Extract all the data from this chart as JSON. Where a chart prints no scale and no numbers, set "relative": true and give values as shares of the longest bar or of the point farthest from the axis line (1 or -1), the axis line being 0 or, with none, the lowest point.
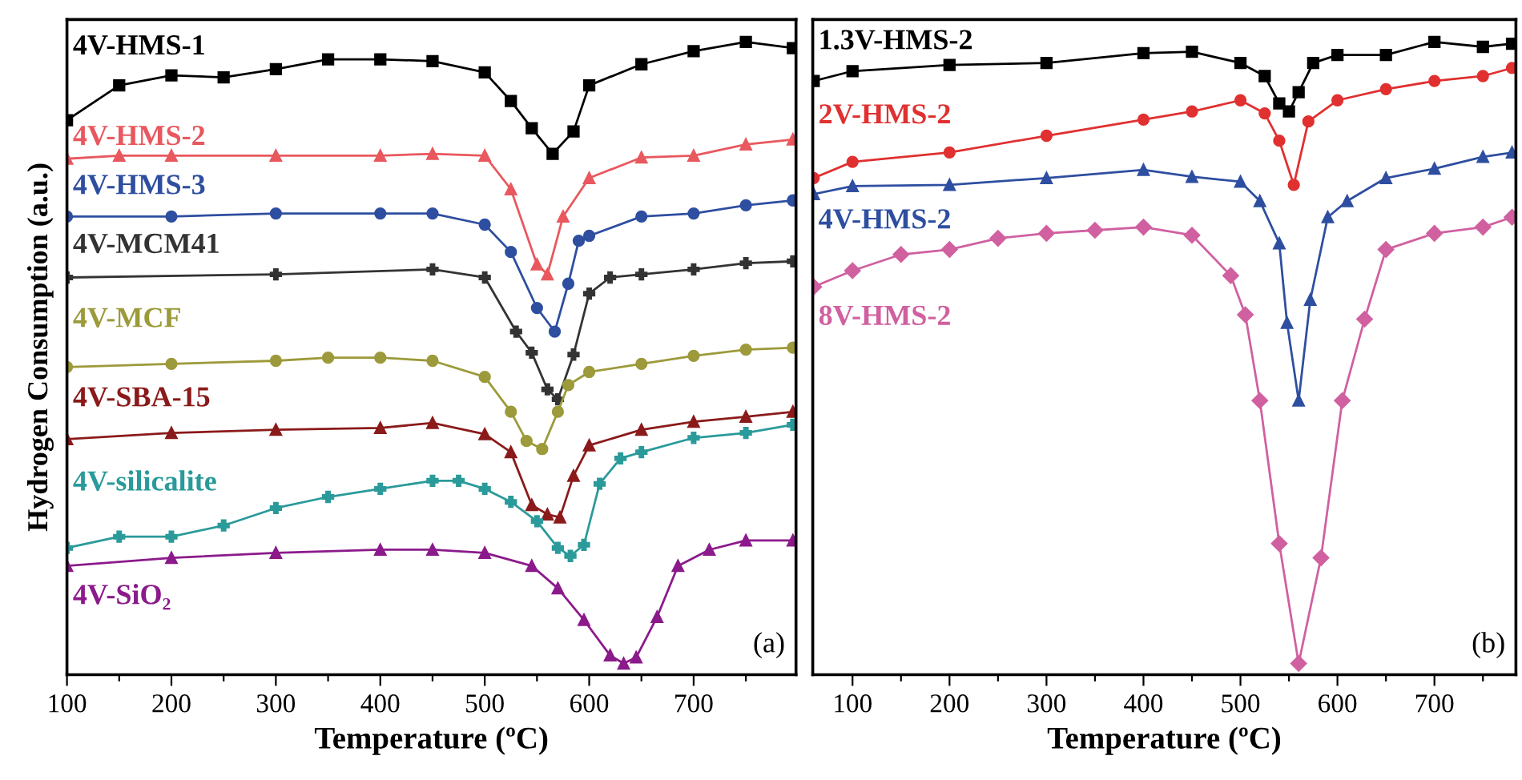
{
  "chart_data": [
    {
      "type": "line",
      "relative": true,
      "ylabel": "Hydrogen Consumption (a.u.)",
      "xlabel": "Temperature (ºC)",
      "xlim": [
        100,
        798
      ],
      "xticks": [
        100,
        {
          "value": 150,
          "label": null
        },
        200,
        {
          "value": 250,
          "label": null
        },
        300,
        {
          "value": 350,
          "label": null
        },
        400,
        {
          "value": 450,
          "label": null
        },
        500,
        {
          "value": 550,
          "label": null
        },
        600,
        {
          "value": 650,
          "label": null
        },
        700,
        {
          "value": 750,
          "label": null
        }
      ],
      "tick_labels": "x",
      "grid": false,
      "legend": false,
      "annotations": [
        "(a)"
      ],
      "series": [
        {
          "name": "4V-HMS-1",
          "color": "#000000",
          "marker": "square",
          "x": [
            100,
            150,
            200,
            250,
            300,
            350,
            400,
            450,
            500,
            525,
            545,
            565,
            585,
            600,
            650,
            700,
            750,
            795
          ],
          "values": [
            0.874,
            0.93,
            0.946,
            0.943,
            0.956,
            0.972,
            0.972,
            0.969,
            0.951,
            0.905,
            0.861,
            0.82,
            0.856,
            0.93,
            0.964,
            0.985,
            1.0,
            0.99
          ]
        },
        {
          "name": "4V-HMS-2",
          "color": "#e8585e",
          "marker": "triangle",
          "x": [
            100,
            150,
            200,
            300,
            400,
            450,
            500,
            525,
            550,
            560,
            575,
            600,
            650,
            700,
            750,
            795
          ],
          "values": [
            0.812,
            0.817,
            0.817,
            0.817,
            0.817,
            0.82,
            0.817,
            0.763,
            0.642,
            0.626,
            0.719,
            0.781,
            0.814,
            0.817,
            0.835,
            0.843
          ]
        },
        {
          "name": "4V-HMS-3",
          "color": "#2e4ea0",
          "marker": "circle",
          "x": [
            100,
            200,
            300,
            400,
            450,
            500,
            525,
            550,
            567,
            580,
            590,
            600,
            650,
            700,
            750,
            795
          ],
          "values": [
            0.719,
            0.719,
            0.724,
            0.724,
            0.724,
            0.706,
            0.662,
            0.572,
            0.534,
            0.611,
            0.68,
            0.688,
            0.719,
            0.724,
            0.737,
            0.745
          ]
        },
        {
          "name": "4V-MCM41",
          "color": "#333333",
          "marker": "cross",
          "x": [
            100,
            300,
            450,
            500,
            530,
            545,
            560,
            570,
            585,
            600,
            620,
            650,
            700,
            750,
            795
          ],
          "values": [
            0.621,
            0.626,
            0.634,
            0.621,
            0.534,
            0.5,
            0.441,
            0.425,
            0.497,
            0.595,
            0.621,
            0.626,
            0.634,
            0.644,
            0.647
          ]
        },
        {
          "name": "4V-MCF",
          "color": "#9c9a3a",
          "marker": "circle",
          "x": [
            100,
            200,
            300,
            350,
            400,
            450,
            500,
            525,
            540,
            555,
            570,
            580,
            600,
            650,
            700,
            750,
            795
          ],
          "values": [
            0.477,
            0.482,
            0.487,
            0.492,
            0.492,
            0.487,
            0.461,
            0.405,
            0.358,
            0.345,
            0.405,
            0.448,
            0.469,
            0.482,
            0.495,
            0.505,
            0.508
          ]
        },
        {
          "name": "4V-SBA-15",
          "color": "#8b1a1a",
          "marker": "triangle",
          "x": [
            100,
            200,
            300,
            400,
            450,
            500,
            525,
            545,
            560,
            572,
            585,
            600,
            650,
            700,
            750,
            795
          ],
          "values": [
            0.361,
            0.371,
            0.376,
            0.379,
            0.387,
            0.369,
            0.34,
            0.255,
            0.24,
            0.235,
            0.302,
            0.351,
            0.376,
            0.389,
            0.397,
            0.405
          ]
        },
        {
          "name": "4V-silicalite",
          "color": "#2a9a9a",
          "marker": "cross",
          "x": [
            100,
            150,
            200,
            250,
            300,
            350,
            400,
            450,
            475,
            500,
            525,
            550,
            570,
            582,
            595,
            610,
            630,
            650,
            700,
            750,
            795
          ],
          "values": [
            0.186,
            0.204,
            0.204,
            0.222,
            0.25,
            0.268,
            0.281,
            0.294,
            0.294,
            0.281,
            0.26,
            0.229,
            0.186,
            0.173,
            0.191,
            0.289,
            0.33,
            0.34,
            0.363,
            0.371,
            0.384
          ]
        },
        {
          "name": "4V-SiO₂",
          "color": "#8b1a8b",
          "marker": "triangle",
          "x": [
            100,
            200,
            300,
            400,
            450,
            500,
            545,
            570,
            595,
            620,
            633,
            645,
            665,
            685,
            715,
            750,
            795
          ],
          "values": [
            0.157,
            0.17,
            0.178,
            0.183,
            0.183,
            0.178,
            0.157,
            0.121,
            0.07,
            0.013,
            0.0,
            0.01,
            0.075,
            0.157,
            0.183,
            0.198,
            0.198
          ]
        }
      ]
    },
    {
      "type": "line",
      "relative": true,
      "xlabel": "Temperature (ºC)",
      "xlim": [
        59,
        784
      ],
      "xticks": [
        100,
        {
          "value": 150,
          "label": null
        },
        200,
        {
          "value": 250,
          "label": null
        },
        300,
        {
          "value": 350,
          "label": null
        },
        400,
        {
          "value": 450,
          "label": null
        },
        500,
        {
          "value": 550,
          "label": null
        },
        600,
        {
          "value": 650,
          "label": null
        },
        700,
        {
          "value": 750,
          "label": null
        }
      ],
      "tick_labels": "x",
      "grid": false,
      "legend": false,
      "annotations": [
        "(b)"
      ],
      "series": [
        {
          "name": "1.3V-HMS-2",
          "color": "#000000",
          "marker": "square",
          "x": [
            60,
            100,
            200,
            300,
            400,
            450,
            500,
            525,
            540,
            550,
            560,
            575,
            600,
            650,
            700,
            750,
            780
          ],
          "values": [
            0.937,
            0.953,
            0.963,
            0.966,
            0.982,
            0.984,
            0.966,
            0.945,
            0.901,
            0.888,
            0.919,
            0.966,
            0.979,
            0.979,
            1.0,
            0.992,
            0.997
          ]
        },
        {
          "name": "2V-HMS-2",
          "color": "#e03030",
          "marker": "circle",
          "x": [
            60,
            100,
            200,
            300,
            400,
            450,
            500,
            525,
            540,
            555,
            570,
            600,
            650,
            700,
            750,
            780
          ],
          "values": [
            0.781,
            0.807,
            0.822,
            0.849,
            0.875,
            0.888,
            0.906,
            0.885,
            0.841,
            0.77,
            0.872,
            0.906,
            0.924,
            0.937,
            0.945,
            0.958
          ]
        },
        {
          "name": "4V-HMS-2",
          "color": "#2e4ea0",
          "marker": "triangle",
          "x": [
            60,
            100,
            200,
            300,
            400,
            450,
            500,
            520,
            540,
            548,
            560,
            572,
            590,
            610,
            650,
            700,
            750,
            780
          ],
          "values": [
            0.755,
            0.768,
            0.77,
            0.781,
            0.794,
            0.783,
            0.775,
            0.744,
            0.676,
            0.548,
            0.423,
            0.585,
            0.718,
            0.744,
            0.781,
            0.796,
            0.815,
            0.822
          ]
        },
        {
          "name": "8V-HMS-2",
          "color": "#d060a0",
          "marker": "diamond",
          "x": [
            60,
            100,
            150,
            200,
            250,
            300,
            350,
            400,
            450,
            490,
            505,
            520,
            540,
            560,
            583,
            605,
            628,
            650,
            700,
            750,
            780
          ],
          "values": [
            0.606,
            0.632,
            0.658,
            0.666,
            0.684,
            0.692,
            0.697,
            0.702,
            0.689,
            0.624,
            0.561,
            0.423,
            0.193,
            0.0,
            0.17,
            0.423,
            0.554,
            0.666,
            0.692,
            0.702,
            0.718
          ]
        }
      ]
    }
  ]
}
